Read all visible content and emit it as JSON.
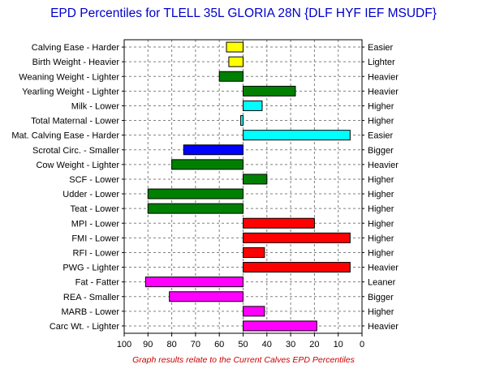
{
  "chart_data": {
    "type": "bar",
    "orientation": "horizontal",
    "title": "EPD Percentiles for TLELL 35L GLORIA 28N {DLF HYF IEF MSUDF}",
    "footnote": "Graph results relate to the Current Calves EPD Percentiles",
    "xlim": [
      100,
      0
    ],
    "x_ticks": [
      100,
      90,
      80,
      70,
      60,
      50,
      40,
      30,
      20,
      10,
      0
    ],
    "baseline": 50,
    "grid": true,
    "categories": [
      "Calving Ease - Harder",
      "Birth Weight - Heavier",
      "Weaning Weight - Lighter",
      "Yearling Weight - Lighter",
      "Milk - Lower",
      "Total Maternal - Lower",
      "Mat. Calving Ease - Harder",
      "Scrotal Circ. - Smaller",
      "Cow Weight - Lighter",
      "SCF - Lower",
      "Udder - Lower",
      "Teat - Lower",
      "MPI - Lower",
      "FMI - Lower",
      "RFI - Lower",
      "PWG - Lighter",
      "Fat - Fatter",
      "REA - Smaller",
      "MARB - Lower",
      "Carc Wt. - Lighter"
    ],
    "right_labels": [
      "Easier",
      "Lighter",
      "Heavier",
      "Heavier",
      "Higher",
      "Higher",
      "Easier",
      "Bigger",
      "Heavier",
      "Higher",
      "Higher",
      "Higher",
      "Higher",
      "Higher",
      "Higher",
      "Heavier",
      "Leaner",
      "Bigger",
      "Higher",
      "Heavier"
    ],
    "values": [
      57,
      56,
      60,
      28,
      42,
      51,
      5,
      75,
      80,
      40,
      90,
      90,
      20,
      5,
      41,
      5,
      91,
      81,
      41,
      19
    ],
    "colors": [
      "#ffff00",
      "#ffff00",
      "#008000",
      "#008000",
      "#00ffff",
      "#00ffff",
      "#00ffff",
      "#0000ff",
      "#008000",
      "#008000",
      "#008000",
      "#008000",
      "#ff0000",
      "#ff0000",
      "#ff0000",
      "#ff0000",
      "#ff00ff",
      "#ff00ff",
      "#ff00ff",
      "#ff00ff"
    ],
    "title_color": "#0000cc",
    "footnote_color": "#cc0000"
  }
}
